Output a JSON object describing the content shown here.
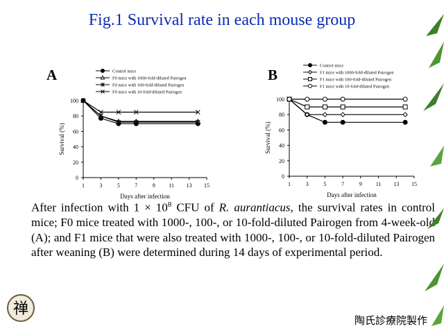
{
  "title": "Fig.1 Survival rate in each mouse group",
  "footer": "陶氏診療院製作",
  "seal_char": "禅",
  "caption": {
    "p1": "After infection with 1 × 10",
    "exp": "8",
    "p2": " CFU of ",
    "species": "R. aurantiacus",
    "p3": ", the survival rates in control mice; F0 mice treated with 1000-, 100-, or 10-fold-diluted Pairogen from 4-week-old (A); and F1 mice that were also treated with 1000-, 100-, or 10-fold-diluted Pairogen after weaning (B) were determined during 14 days of experimental period."
  },
  "chart_data": [
    {
      "panel": "A",
      "type": "line",
      "xlabel": "Days after infection",
      "ylabel": "Survival (%)",
      "xlim": [
        1,
        15
      ],
      "ylim": [
        0,
        100
      ],
      "xticks": [
        1,
        3,
        5,
        7,
        9,
        11,
        13,
        15
      ],
      "yticks": [
        0,
        20,
        40,
        60,
        80,
        100
      ],
      "x": [
        1,
        3,
        5,
        7,
        14
      ],
      "legend_position": "top",
      "series": [
        {
          "name": "Control mice",
          "marker": "filled-circle",
          "values": [
            100,
            77,
            70,
            70,
            70
          ]
        },
        {
          "name": "F0 mice with 1000-fold-diluted Pairogen",
          "marker": "triangle",
          "values": [
            100,
            80,
            73,
            73,
            73
          ]
        },
        {
          "name": "F0 mice with 100-fold-diluted Pairogen",
          "marker": "asterisk",
          "values": [
            100,
            80,
            72,
            72,
            72
          ]
        },
        {
          "name": "F0 mice with 10-fold-diluted Pairogen",
          "marker": "x",
          "values": [
            100,
            85,
            85,
            85,
            85
          ]
        }
      ]
    },
    {
      "panel": "B",
      "type": "line",
      "xlabel": "Days after infection",
      "ylabel": "Survival (%)",
      "xlim": [
        1,
        15
      ],
      "ylim": [
        0,
        100
      ],
      "xticks": [
        1,
        3,
        5,
        7,
        9,
        11,
        13,
        15
      ],
      "yticks": [
        0,
        20,
        40,
        60,
        80,
        100
      ],
      "x": [
        1,
        3,
        5,
        7,
        14
      ],
      "legend_position": "top",
      "series": [
        {
          "name": "Control mice",
          "marker": "filled-circle",
          "values": [
            100,
            80,
            70,
            70,
            70
          ]
        },
        {
          "name": "F1 mice with 1000-fold-diluted Pairogen",
          "marker": "diamond",
          "values": [
            100,
            80,
            80,
            80,
            80
          ]
        },
        {
          "name": "F1 mice with 100-fold-diluted Pairogen",
          "marker": "square",
          "values": [
            100,
            90,
            90,
            90,
            90
          ]
        },
        {
          "name": "F1 mice with 10-fold-diluted Pairogen",
          "marker": "circle",
          "values": [
            100,
            100,
            100,
            100,
            100
          ]
        }
      ]
    }
  ]
}
